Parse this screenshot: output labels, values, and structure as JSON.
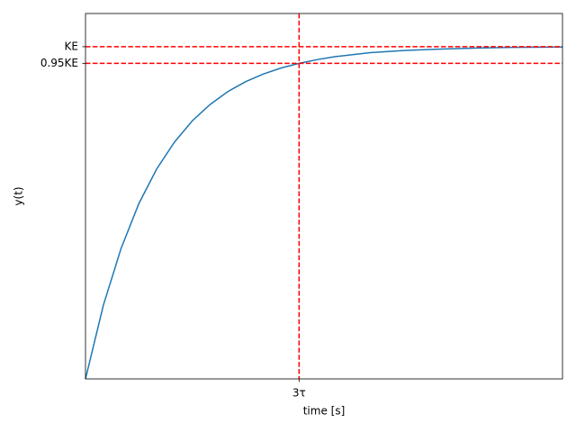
{
  "chart_data": {
    "type": "line",
    "xlabel": "time [s]",
    "ylabel": "y(t)",
    "x": [
      0,
      0.25,
      0.5,
      0.75,
      1,
      1.25,
      1.5,
      1.75,
      2,
      2.25,
      2.5,
      2.75,
      3,
      3.25,
      3.5,
      3.75,
      4,
      4.5,
      5,
      5.5,
      6,
      6.7
    ],
    "series": [
      {
        "color": "#1f77b4",
        "values": [
          0,
          0.221,
          0.393,
          0.528,
          0.632,
          0.713,
          0.777,
          0.826,
          0.865,
          0.895,
          0.918,
          0.936,
          0.95,
          0.961,
          0.97,
          0.976,
          0.982,
          0.989,
          0.993,
          0.996,
          0.998,
          0.999
        ]
      }
    ],
    "xlim": [
      0,
      6.7
    ],
    "ylim": [
      0,
      1.1
    ],
    "xticks": [
      {
        "value": 3,
        "label": "3τ"
      }
    ],
    "yticks": [
      {
        "value": 0.95,
        "label": "0.95KE"
      },
      {
        "value": 1,
        "label": "KE"
      }
    ],
    "reference_lines": {
      "color": "#ff0000",
      "h": [
        1,
        0.95
      ],
      "v": [
        3
      ]
    },
    "grid": false
  }
}
